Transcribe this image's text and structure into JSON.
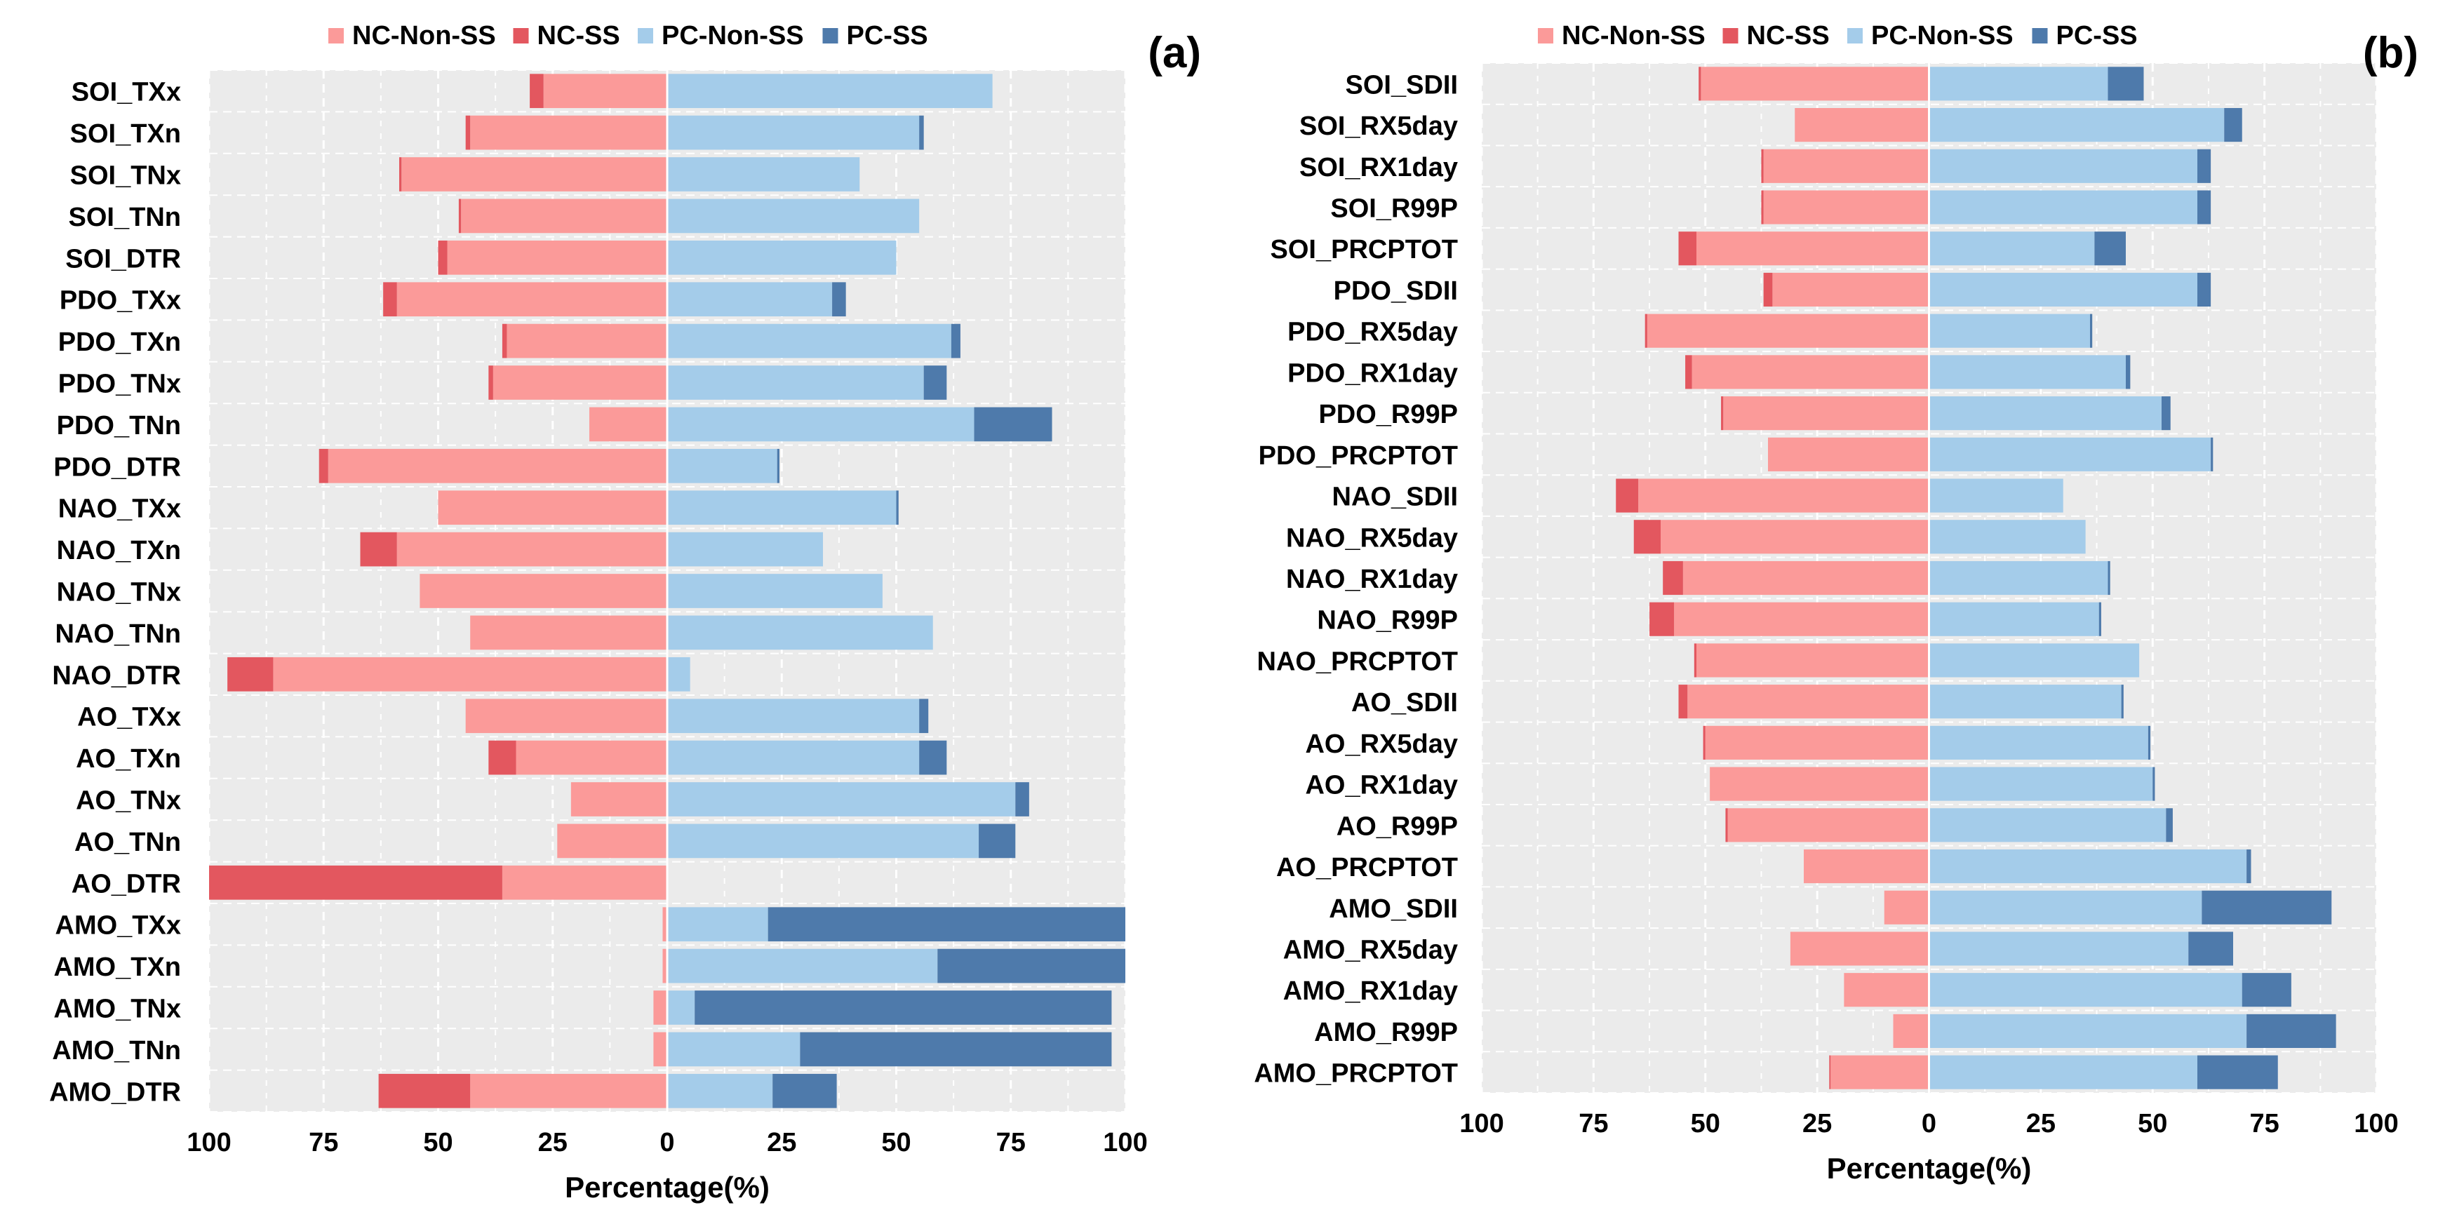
{
  "colors": {
    "nc_non_ss": "#FB9A99",
    "nc_ss": "#E3575F",
    "pc_non_ss": "#A4CCEA",
    "pc_ss": "#4E7AAB",
    "panel_bg": "#EBEBEB",
    "grid": "#FFFFFF"
  },
  "legend": [
    "NC-Non-SS",
    "NC-SS",
    "PC-Non-SS",
    "PC-SS"
  ],
  "chart_data": [
    {
      "type": "bar",
      "orientation": "horizontal-diverging",
      "panel_label": "(a)",
      "xlabel": "Percentage(%)",
      "xlim": [
        -100,
        100
      ],
      "xticks": [
        -100,
        -75,
        -50,
        -25,
        0,
        25,
        50,
        75,
        100
      ],
      "xtick_labels": [
        "100",
        "75",
        "50",
        "25",
        "0",
        "25",
        "50",
        "75",
        "100"
      ],
      "categories": [
        "SOI_TXx",
        "SOI_TXn",
        "SOI_TNx",
        "SOI_TNn",
        "SOI_DTR",
        "PDO_TXx",
        "PDO_TXn",
        "PDO_TNx",
        "PDO_TNn",
        "PDO_DTR",
        "NAO_TXx",
        "NAO_TXn",
        "NAO_TNx",
        "NAO_TNn",
        "NAO_DTR",
        "AO_TXx",
        "AO_TXn",
        "AO_TNx",
        "AO_TNn",
        "AO_DTR",
        "AMO_TXx",
        "AMO_TXn",
        "AMO_TNx",
        "AMO_TNn",
        "AMO_DTR"
      ],
      "series": [
        {
          "name": "NC-Non-SS",
          "values": [
            27,
            43,
            58,
            45,
            48,
            59,
            35,
            38,
            17,
            74,
            50,
            59,
            54,
            43,
            86,
            44,
            33,
            21,
            24,
            36,
            1,
            1,
            3,
            3,
            43
          ]
        },
        {
          "name": "NC-SS",
          "values": [
            3,
            1,
            0.5,
            0.5,
            2,
            3,
            1,
            1,
            0,
            2,
            0,
            8,
            0,
            0,
            10,
            0,
            6,
            0,
            0,
            64,
            0,
            0,
            0,
            0,
            20
          ]
        },
        {
          "name": "PC-Non-SS",
          "values": [
            71,
            55,
            42,
            55,
            50,
            36,
            62,
            56,
            67,
            24,
            50,
            34,
            47,
            58,
            5,
            55,
            55,
            76,
            68,
            0,
            22,
            59,
            6,
            29,
            23
          ]
        },
        {
          "name": "PC-SS",
          "values": [
            0,
            1,
            0,
            0,
            0,
            3,
            2,
            5,
            17,
            0.5,
            0.5,
            0,
            0,
            0,
            0,
            2,
            6,
            3,
            8,
            0,
            78,
            41,
            91,
            68,
            14
          ]
        }
      ]
    },
    {
      "type": "bar",
      "orientation": "horizontal-diverging",
      "panel_label": "(b)",
      "xlabel": "Percentage(%)",
      "xlim": [
        -100,
        100
      ],
      "xticks": [
        -100,
        -75,
        -50,
        -25,
        0,
        25,
        50,
        75,
        100
      ],
      "xtick_labels": [
        "100",
        "75",
        "50",
        "25",
        "0",
        "25",
        "50",
        "75",
        "100"
      ],
      "categories": [
        "SOI_SDII",
        "SOI_RX5day",
        "SOI_RX1day",
        "SOI_R99P",
        "SOI_PRCPTOT",
        "PDO_SDII",
        "PDO_RX5day",
        "PDO_RX1day",
        "PDO_R99P",
        "PDO_PRCPTOT",
        "NAO_SDII",
        "NAO_RX5day",
        "NAO_RX1day",
        "NAO_R99P",
        "NAO_PRCPTOT",
        "AO_SDII",
        "AO_RX5day",
        "AO_RX1day",
        "AO_R99P",
        "AO_PRCPTOT",
        "AMO_SDII",
        "AMO_RX5day",
        "AMO_RX1day",
        "AMO_R99P",
        "AMO_PRCPTOT"
      ],
      "series": [
        {
          "name": "NC-Non-SS",
          "values": [
            51,
            30,
            37,
            37,
            52,
            35,
            63,
            53,
            46,
            36,
            65,
            60,
            55,
            57,
            52,
            54,
            50,
            49,
            45,
            28,
            10,
            31,
            19,
            8,
            22
          ]
        },
        {
          "name": "NC-SS",
          "values": [
            0.5,
            0,
            0.5,
            0.5,
            4,
            2,
            0.5,
            1.5,
            0.5,
            0,
            5,
            6,
            4.5,
            5.5,
            0.5,
            2,
            0.5,
            0,
            0.5,
            0,
            0,
            0,
            0,
            0,
            0.3
          ]
        },
        {
          "name": "PC-Non-SS",
          "values": [
            40,
            66,
            60,
            60,
            37,
            60,
            36,
            44,
            52,
            63,
            30,
            35,
            40,
            38,
            47,
            43,
            49,
            50,
            53,
            71,
            61,
            58,
            70,
            71,
            60
          ]
        },
        {
          "name": "PC-SS",
          "values": [
            8,
            4,
            3,
            3,
            7,
            3,
            0.5,
            1,
            2,
            0.5,
            0,
            0,
            0.5,
            0.5,
            0,
            0.5,
            0.5,
            0.5,
            1.5,
            1,
            29,
            10,
            11,
            20,
            18
          ]
        }
      ]
    }
  ]
}
